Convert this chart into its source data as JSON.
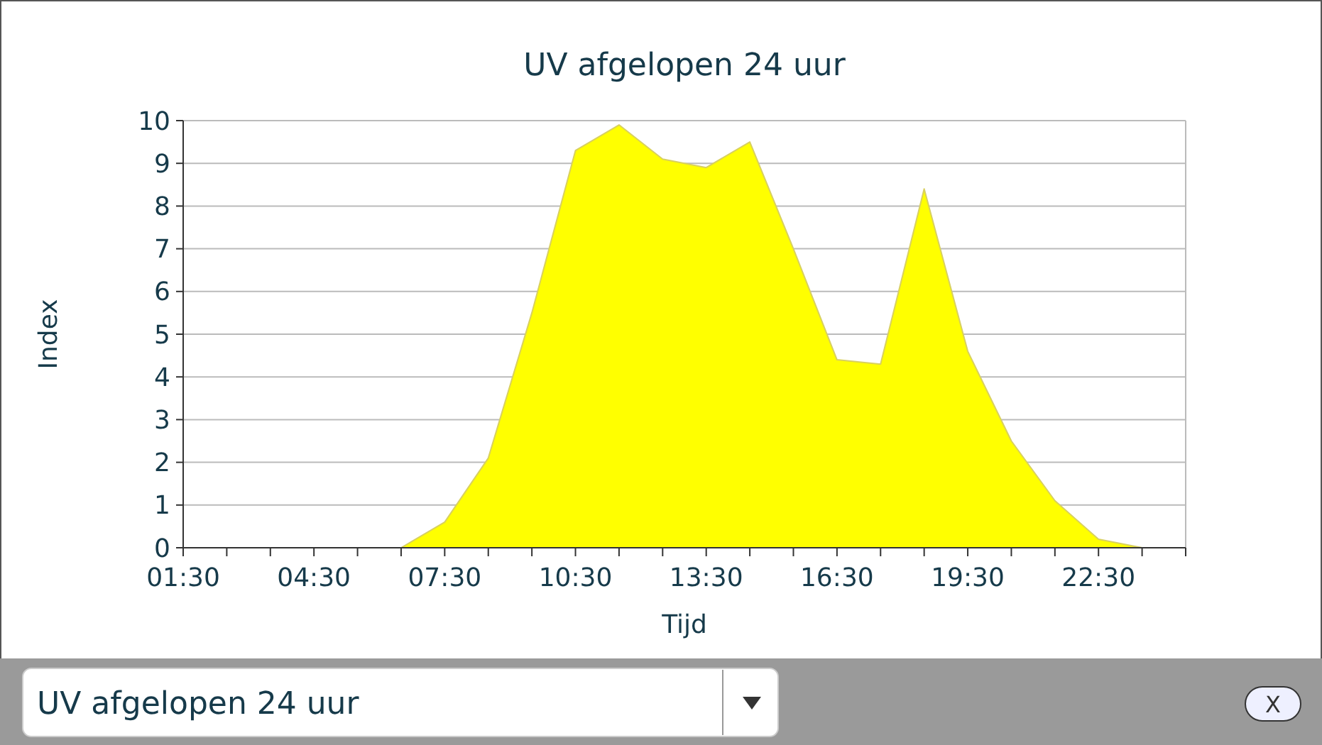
{
  "chart_data": {
    "type": "area",
    "title": "UV afgelopen 24 uur",
    "xlabel": "Tijd",
    "ylabel": "Index",
    "categories": [
      "01:30",
      null,
      null,
      "04:30",
      null,
      null,
      "07:30",
      null,
      null,
      "10:30",
      null,
      null,
      "13:30",
      null,
      null,
      "16:30",
      null,
      null,
      "19:30",
      null,
      null,
      "22:30",
      null,
      null
    ],
    "series": [
      {
        "color": "#ffff00",
        "values": [
          0,
          0,
          0,
          0,
          0,
          0,
          0.6,
          2.1,
          5.5,
          9.3,
          9.9,
          9.1,
          8.9,
          9.5,
          7.0,
          4.4,
          4.3,
          8.4,
          4.6,
          2.5,
          1.1,
          0.2,
          0,
          0
        ]
      }
    ],
    "ylim": [
      0,
      10
    ],
    "yticks": [
      0,
      1,
      2,
      3,
      4,
      5,
      6,
      7,
      8,
      9,
      10
    ],
    "grid": "y",
    "annotations": [
      "UV afgelopen 24 uur",
      "X"
    ]
  }
}
